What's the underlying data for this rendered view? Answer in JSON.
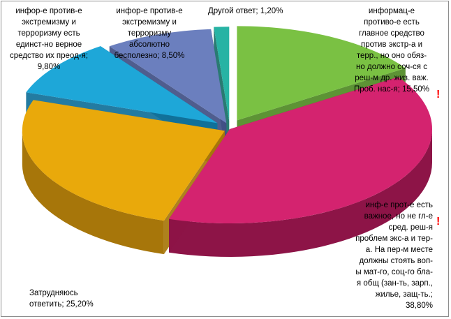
{
  "chart_data": {
    "type": "pie",
    "style": "3d-exploded",
    "title": "",
    "legend": "none",
    "slices": [
      {
        "label": "информац-е противо-е есть главное средство против экстр-а и терр., но оно обяз-но должно соч-ся с реш-м др. жиз. важ. Проб. нас-я;",
        "value": 15.5,
        "value_text": "15,50%",
        "color": "#7ac143",
        "side_color": "#4f8a24"
      },
      {
        "label": "инф-е прот-е есть важное, но не гл-е сред. реш-я проблем экс-а и тер-а. На пер-м месте должны стоять воп-ы мат-го, соц-го бла-я общ (зан-ть, зарп., жилье, защ-ть.;",
        "value": 38.8,
        "value_text": "38,80%",
        "color": "#d4236f",
        "side_color": "#8d1447"
      },
      {
        "label": "Затрудняюсь ответить;",
        "value": 25.2,
        "value_text": "25,20%",
        "color": "#e9a90b",
        "side_color": "#a7760a"
      },
      {
        "label": "инфор-е против-е экстремизму и терроризму есть единст-но верное средство их преод-я;",
        "value": 9.8,
        "value_text": "9,80%",
        "color": "#1ea7d8",
        "side_color": "#107099"
      },
      {
        "label": "инфор-е против-е экстремизму и терроризму абсолютно бесполезно;",
        "value": 8.5,
        "value_text": "8,50%",
        "color": "#6b7fbe",
        "side_color": "#404f84"
      },
      {
        "label": "Другой ответ;",
        "value": 1.2,
        "value_text": "1,20%",
        "color": "#27b3a4",
        "side_color": "#177066"
      }
    ]
  },
  "labels": {
    "slice_0": "информац-е\nпротиво-е есть\nглавное средство\nпротив экстр-а и\nтерр., но оно обяз-\nно должно соч-ся с\nреш-м др. жиз. важ.\nПроб. нас-я; 15,50%",
    "slice_1": "инф-е прот-е есть\nважное, но не гл-е\nсред. реш-я\nпроблем экс-а и тер-\nа. На пер-м месте\nдолжны стоять воп-\nы мат-го, соц-го бла-\nя общ (зан-ть, зарп.,\nжилье, защ-ть.;\n38,80%",
    "slice_2": "Затрудняюсь\nответить;  25,20%",
    "slice_3": "инфор-е против-е\nэкстремизму и\nтерроризму есть\nединст-но верное\nсредство их преод-я;\n9,80%",
    "slice_4": "инфор-е против-е\nэкстремизму и\nтерроризму\nабсолютно\nбесполезно; 8,50%",
    "slice_5": "Другой ответ;  1,20%"
  },
  "marks": {
    "exclamation": "!"
  }
}
